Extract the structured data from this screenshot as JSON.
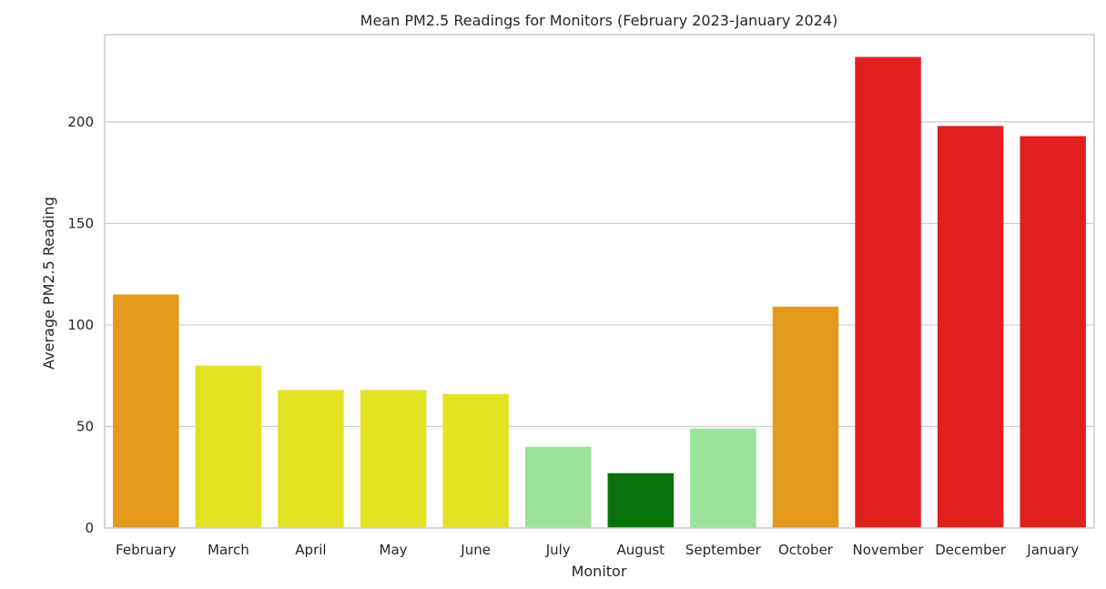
{
  "chart_data": {
    "type": "bar",
    "title": "Mean PM2.5 Readings for Monitors (February 2023-January 2024)",
    "xlabel": "Monitor",
    "ylabel": "Average PM2.5 Reading",
    "categories": [
      "February",
      "March",
      "April",
      "May",
      "June",
      "July",
      "August",
      "September",
      "October",
      "November",
      "December",
      "January"
    ],
    "values": [
      115,
      80,
      68,
      68,
      66,
      40,
      27,
      49,
      109,
      232,
      198,
      193
    ],
    "colors": [
      "#e39a1c",
      "#e2e222",
      "#e2e222",
      "#e2e222",
      "#e2e222",
      "#9be39b",
      "#0a720a",
      "#9be39b",
      "#e39a1c",
      "#e21f1f",
      "#e21f1f",
      "#e21f1f"
    ],
    "yticks": [
      0,
      50,
      100,
      150,
      200
    ],
    "ylim": [
      0,
      243
    ],
    "grid": true,
    "legend": "none"
  }
}
